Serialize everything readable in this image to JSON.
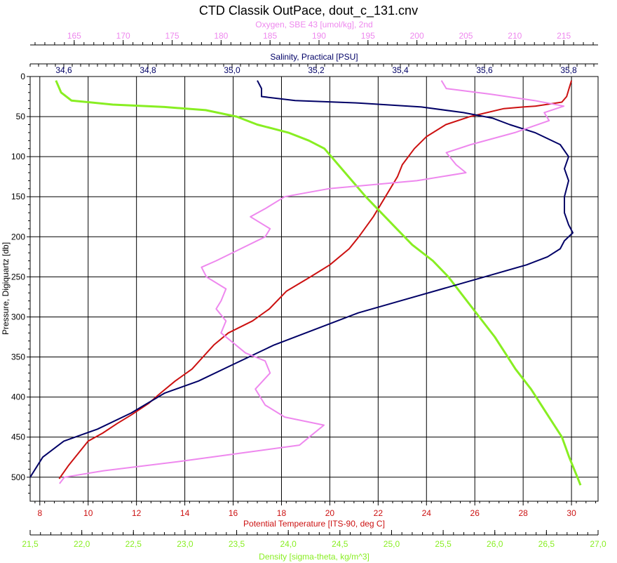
{
  "chart_data": {
    "type": "line",
    "title": "CTD Classik OutPace, dout_c_131.cnv",
    "grid": true,
    "axes": {
      "pressure": {
        "label": "Pressure, Digiquartz [db]",
        "ticks": [
          "0",
          "50",
          "100",
          "150",
          "200",
          "250",
          "300",
          "350",
          "400",
          "450",
          "500"
        ],
        "range": [
          0,
          530
        ],
        "color": "#000000"
      },
      "temperature": {
        "label": "Potential Temperature [ITS-90, deg C]",
        "ticks": [
          "8",
          "10",
          "12",
          "14",
          "16",
          "18",
          "20",
          "22",
          "24",
          "26",
          "28",
          "30"
        ],
        "range": [
          7.6,
          31.1
        ],
        "color": "#cc1111"
      },
      "density": {
        "label": "Density [sigma-theta, kg/m^3]",
        "ticks": [
          "21,5",
          "22,0",
          "22,5",
          "23,0",
          "23,5",
          "24,0",
          "24,5",
          "25,0",
          "25,5",
          "26,0",
          "26,5",
          "27,0"
        ],
        "range": [
          21.5,
          27.0
        ],
        "color": "#88ee22"
      },
      "salinity": {
        "label": "Salinity, Practical [PSU]",
        "ticks": [
          "34,6",
          "34,8",
          "35,0",
          "35,2",
          "35,4",
          "35,6",
          "35,8"
        ],
        "range": [
          34.52,
          35.87
        ],
        "color": "#000066"
      },
      "oxygen": {
        "label": "Oxygen, SBE 43 [umol/kg], 2nd",
        "ticks": [
          "165",
          "170",
          "175",
          "180",
          "185",
          "190",
          "195",
          "200",
          "205",
          "210",
          "215"
        ],
        "range": [
          160.5,
          218.5
        ],
        "color": "#ee88ee"
      }
    },
    "series": [
      {
        "name": "Potential Temperature",
        "axis": "temperature",
        "color": "#cc1111",
        "points": [
          [
            30.0,
            5
          ],
          [
            29.9,
            15
          ],
          [
            29.8,
            25
          ],
          [
            29.6,
            32
          ],
          [
            28.5,
            37
          ],
          [
            28.0,
            38
          ],
          [
            27.2,
            40
          ],
          [
            25.8,
            50
          ],
          [
            24.8,
            60
          ],
          [
            24.0,
            75
          ],
          [
            23.5,
            90
          ],
          [
            23.0,
            110
          ],
          [
            22.8,
            125
          ],
          [
            22.3,
            150
          ],
          [
            21.8,
            175
          ],
          [
            21.2,
            200
          ],
          [
            20.8,
            215
          ],
          [
            20.0,
            235
          ],
          [
            19.2,
            250
          ],
          [
            18.2,
            268
          ],
          [
            17.5,
            290
          ],
          [
            16.8,
            305
          ],
          [
            15.8,
            320
          ],
          [
            15.2,
            335
          ],
          [
            14.3,
            365
          ],
          [
            13.6,
            380
          ],
          [
            13.0,
            395
          ],
          [
            12.5,
            408
          ],
          [
            11.8,
            422
          ],
          [
            11.2,
            433
          ],
          [
            10.6,
            445
          ],
          [
            10.0,
            455
          ],
          [
            9.6,
            470
          ],
          [
            9.2,
            485
          ],
          [
            8.8,
            502
          ]
        ]
      },
      {
        "name": "Density",
        "axis": "density",
        "color": "#88ee22",
        "points": [
          [
            21.75,
            5
          ],
          [
            21.8,
            20
          ],
          [
            21.9,
            30
          ],
          [
            22.3,
            35
          ],
          [
            22.8,
            38
          ],
          [
            23.2,
            42
          ],
          [
            23.5,
            50
          ],
          [
            23.7,
            60
          ],
          [
            24.0,
            70
          ],
          [
            24.2,
            80
          ],
          [
            24.35,
            90
          ],
          [
            24.45,
            105
          ],
          [
            24.55,
            120
          ],
          [
            24.65,
            135
          ],
          [
            24.75,
            150
          ],
          [
            24.9,
            170
          ],
          [
            25.05,
            190
          ],
          [
            25.2,
            210
          ],
          [
            25.4,
            230
          ],
          [
            25.55,
            250
          ],
          [
            25.7,
            275
          ],
          [
            25.85,
            300
          ],
          [
            26.0,
            325
          ],
          [
            26.1,
            345
          ],
          [
            26.2,
            365
          ],
          [
            26.35,
            390
          ],
          [
            26.45,
            410
          ],
          [
            26.55,
            430
          ],
          [
            26.65,
            450
          ],
          [
            26.72,
            475
          ],
          [
            26.8,
            500
          ],
          [
            26.83,
            510
          ]
        ]
      },
      {
        "name": "Salinity",
        "axis": "salinity",
        "color": "#000066",
        "points": [
          [
            35.06,
            5
          ],
          [
            35.07,
            15
          ],
          [
            35.07,
            25
          ],
          [
            35.15,
            30
          ],
          [
            35.3,
            33
          ],
          [
            35.45,
            38
          ],
          [
            35.55,
            45
          ],
          [
            35.62,
            52
          ],
          [
            35.66,
            60
          ],
          [
            35.72,
            70
          ],
          [
            35.78,
            85
          ],
          [
            35.8,
            100
          ],
          [
            35.79,
            115
          ],
          [
            35.8,
            130
          ],
          [
            35.79,
            150
          ],
          [
            35.79,
            170
          ],
          [
            35.8,
            185
          ],
          [
            35.81,
            195
          ],
          [
            35.79,
            205
          ],
          [
            35.78,
            215
          ],
          [
            35.75,
            225
          ],
          [
            35.7,
            235
          ],
          [
            35.6,
            250
          ],
          [
            35.5,
            265
          ],
          [
            35.4,
            280
          ],
          [
            35.3,
            295
          ],
          [
            35.2,
            315
          ],
          [
            35.1,
            335
          ],
          [
            35.0,
            360
          ],
          [
            34.92,
            380
          ],
          [
            34.84,
            395
          ],
          [
            34.76,
            420
          ],
          [
            34.68,
            440
          ],
          [
            34.6,
            455
          ],
          [
            34.55,
            475
          ],
          [
            34.52,
            500
          ]
        ]
      },
      {
        "name": "Oxygen",
        "axis": "oxygen",
        "color": "#ee88ee",
        "points": [
          [
            202.5,
            5
          ],
          [
            203.0,
            15
          ],
          [
            207.5,
            22
          ],
          [
            212.0,
            30
          ],
          [
            215.0,
            37
          ],
          [
            213.0,
            45
          ],
          [
            213.5,
            55
          ],
          [
            210.0,
            70
          ],
          [
            205.5,
            85
          ],
          [
            203.0,
            95
          ],
          [
            204.0,
            110
          ],
          [
            205.0,
            120
          ],
          [
            200.0,
            130
          ],
          [
            191.0,
            140
          ],
          [
            186.5,
            150
          ],
          [
            184.5,
            165
          ],
          [
            183.0,
            175
          ],
          [
            185.0,
            190
          ],
          [
            184.5,
            200
          ],
          [
            182.0,
            215
          ],
          [
            179.5,
            230
          ],
          [
            178.0,
            238
          ],
          [
            178.5,
            250
          ],
          [
            180.5,
            265
          ],
          [
            180.0,
            280
          ],
          [
            179.5,
            290
          ],
          [
            180.5,
            305
          ],
          [
            180.0,
            320
          ],
          [
            181.0,
            330
          ],
          [
            182.5,
            345
          ],
          [
            184.5,
            355
          ],
          [
            185.0,
            370
          ],
          [
            183.5,
            390
          ],
          [
            184.5,
            410
          ],
          [
            186.5,
            425
          ],
          [
            190.5,
            435
          ],
          [
            189.0,
            450
          ],
          [
            188.0,
            460
          ],
          [
            182.0,
            470
          ],
          [
            176.0,
            480
          ],
          [
            168.0,
            492
          ],
          [
            164.0,
            500
          ],
          [
            163.5,
            508
          ]
        ]
      }
    ]
  }
}
